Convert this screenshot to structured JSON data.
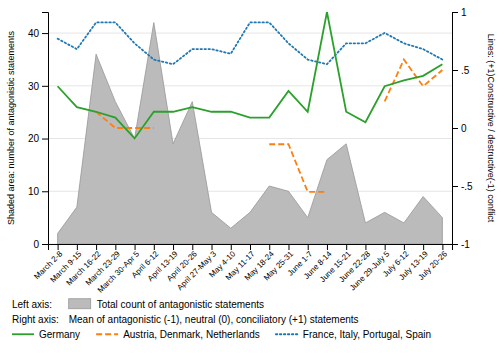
{
  "chart_data": {
    "type": "line",
    "categories": [
      "March 2-8",
      "March 9-15",
      "March 16-22",
      "March 23-29",
      "March 30-Apr 5",
      "April 6-12",
      "April 13-19",
      "April 20-26",
      "April 27-May 3",
      "May 4-10",
      "May 11-17",
      "May 18-24",
      "May 25-31",
      "June 1-7",
      "June 8-14",
      "June 15-21",
      "June 22-28",
      "June 29-July 5",
      "July 6-12",
      "July 13-19",
      "July 20-26"
    ],
    "series": [
      {
        "name": "Total count of antagonistic statements",
        "type": "area",
        "color": "#bbbbbb",
        "values": [
          2,
          7,
          36,
          27,
          20,
          42,
          19,
          27,
          6,
          3,
          6,
          11,
          10,
          5,
          16,
          19,
          4,
          6,
          4,
          9,
          5
        ]
      },
      {
        "name": "France, Italy, Portugal, Spain",
        "type": "line",
        "axis": "y2",
        "line_style": "dotted",
        "values": [
          0.77,
          0.68,
          0.91,
          0.91,
          0.73,
          0.59,
          0.55,
          0.68,
          0.68,
          0.64,
          0.91,
          0.91,
          0.73,
          0.59,
          0.55,
          0.73,
          0.73,
          0.82,
          0.73,
          0.68,
          0.59
        ]
      },
      {
        "name": "Austria, Denmark, Netherlands",
        "type": "line",
        "axis": "y2",
        "line_style": "dashed",
        "values": [
          null,
          null,
          0.14,
          0.0,
          0.0,
          0.0,
          null,
          null,
          null,
          null,
          null,
          -0.14,
          -0.14,
          -0.55,
          -0.55,
          null,
          null,
          0.23,
          0.59,
          0.36,
          0.5
        ]
      },
      {
        "name": "Germany",
        "type": "line",
        "axis": "y2",
        "line_style": "solid",
        "values": [
          0.36,
          0.18,
          0.14,
          0.09,
          -0.09,
          0.14,
          0.14,
          0.18,
          0.14,
          0.14,
          0.09,
          0.09,
          0.32,
          0.14,
          1.0,
          0.14,
          0.05,
          0.36,
          0.41,
          0.45,
          0.55
        ]
      }
    ],
    "ylabel": "Shaded area: number of antagonistic statements",
    "y2label": "Lines: (+1)Constructive / destructive(-1) conflict",
    "ylim": [
      0,
      44
    ],
    "yticks": [
      0,
      10,
      20,
      30,
      40
    ],
    "y2lim": [
      -1,
      1
    ],
    "y2ticks": [
      -1,
      {
        "value": -0.5,
        "label": "-.5"
      },
      0,
      {
        "value": 0.5,
        "label": ".5"
      },
      1
    ],
    "annotations": [
      "Left axis:",
      "Right axis:",
      "Mean of antagonistic (-1), neutral (0), conciliatory (+1) statements"
    ],
    "grid": true,
    "legend": "bottom"
  }
}
